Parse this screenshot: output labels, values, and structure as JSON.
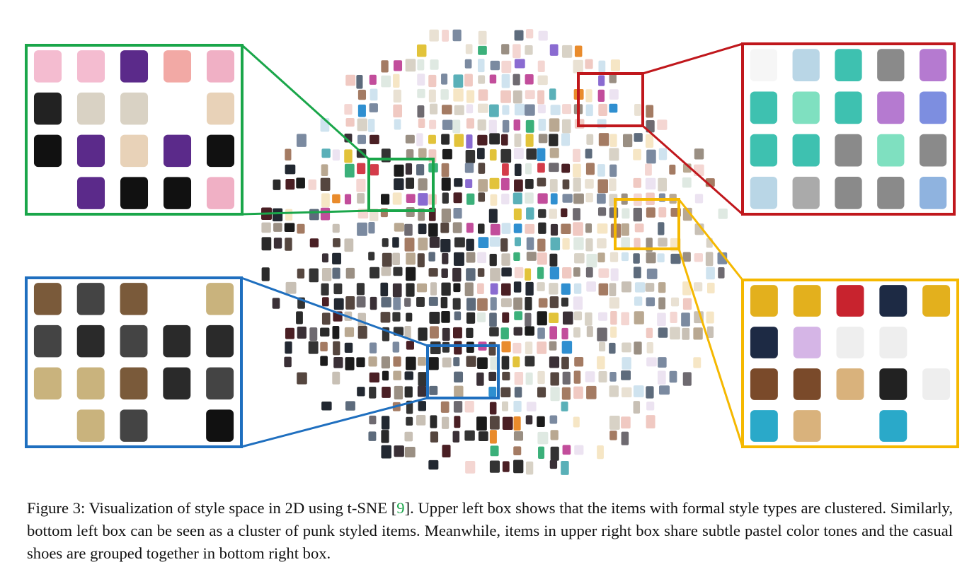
{
  "figure": {
    "caption": {
      "before": "Figure 3: Visualization of style space in 2D using t-SNE [",
      "citation": "9",
      "after": "]. Upper left box shows that the items with formal style types are clustered. Similarly, bottom left box can be seen as a cluster of punk styled items. Meanwhile, items in upper right box share subtle pastel color tones and the casual shoes are grouped together in bottom right box."
    }
  }
}
